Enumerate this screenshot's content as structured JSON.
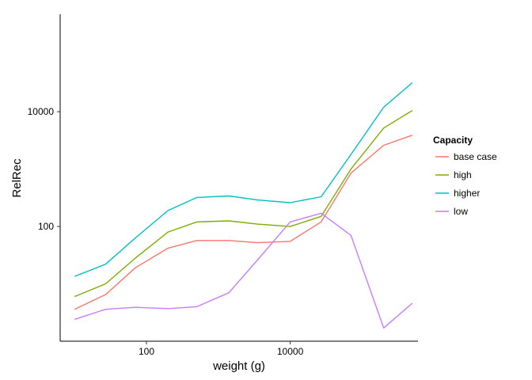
{
  "chart_data": {
    "type": "line",
    "xlabel": "weight (g)",
    "ylabel": "RelRec",
    "x_scale": "log10",
    "y_scale": "log10",
    "xlim": [
      6.3,
      600000
    ],
    "ylim": [
      1,
      500000
    ],
    "x_ticks": [
      {
        "value": 100,
        "label": "100"
      },
      {
        "value": 10000,
        "label": "10000"
      }
    ],
    "y_ticks": [
      {
        "value": 100,
        "label": "100"
      },
      {
        "value": 10000,
        "label": "10000"
      }
    ],
    "grid": false,
    "legend": {
      "title": "Capacity",
      "position": "right"
    },
    "x": [
      10,
      27,
      70,
      200,
      500,
      1400,
      3500,
      10000,
      27000,
      70000,
      200000,
      500000
    ],
    "series": [
      {
        "name": "base case",
        "color": "#F8766D",
        "values": [
          3.6,
          6.5,
          19,
          42,
          57,
          57,
          52,
          55,
          120,
          850,
          2600,
          3900
        ]
      },
      {
        "name": "high",
        "color": "#7CAE00",
        "values": [
          6,
          10,
          28,
          80,
          120,
          125,
          110,
          100,
          150,
          1000,
          5200,
          10500
        ]
      },
      {
        "name": "higher",
        "color": "#00BFC4",
        "values": [
          13.5,
          22,
          63,
          190,
          320,
          340,
          290,
          260,
          330,
          1800,
          12000,
          32000
        ]
      },
      {
        "name": "low",
        "color": "#C77CFF",
        "values": [
          2.4,
          3.6,
          3.9,
          3.7,
          4,
          7,
          26,
          120,
          170,
          70,
          1.7,
          4.6
        ]
      }
    ]
  }
}
